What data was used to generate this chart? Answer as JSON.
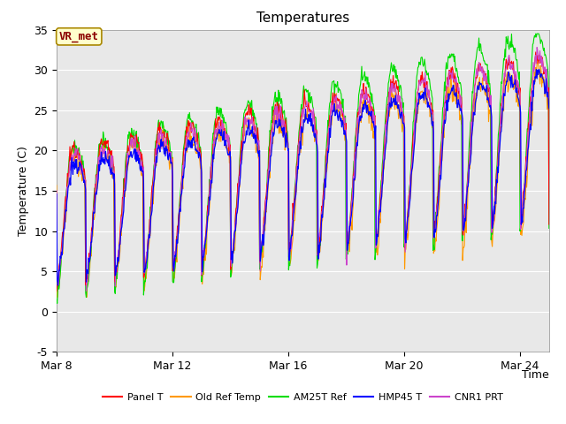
{
  "title": "Temperatures",
  "xlabel": "Time",
  "ylabel": "Temperature (C)",
  "ylim": [
    -5,
    35
  ],
  "yticks": [
    -5,
    0,
    5,
    10,
    15,
    20,
    25,
    30,
    35
  ],
  "xtick_days": [
    0,
    4,
    8,
    12,
    16
  ],
  "xtick_labels": [
    "Mar 8",
    "Mar 12",
    "Mar 16",
    "Mar 20",
    "Mar 24"
  ],
  "series_colors": {
    "Panel T": "#ff0000",
    "Old Ref Temp": "#ff9900",
    "AM25T Ref": "#00dd00",
    "HMP45 T": "#0000ff",
    "CNR1 PRT": "#cc44cc"
  },
  "annotation_text": "VR_met",
  "annotation_color": "#8B0000",
  "annotation_bg": "#ffffcc",
  "plot_bg": "#e8e8e8",
  "fig_bg": "#ffffff",
  "grid_color": "#ffffff",
  "title_fontsize": 11,
  "label_fontsize": 9,
  "tick_fontsize": 9,
  "n_days": 17,
  "seed": 12345
}
